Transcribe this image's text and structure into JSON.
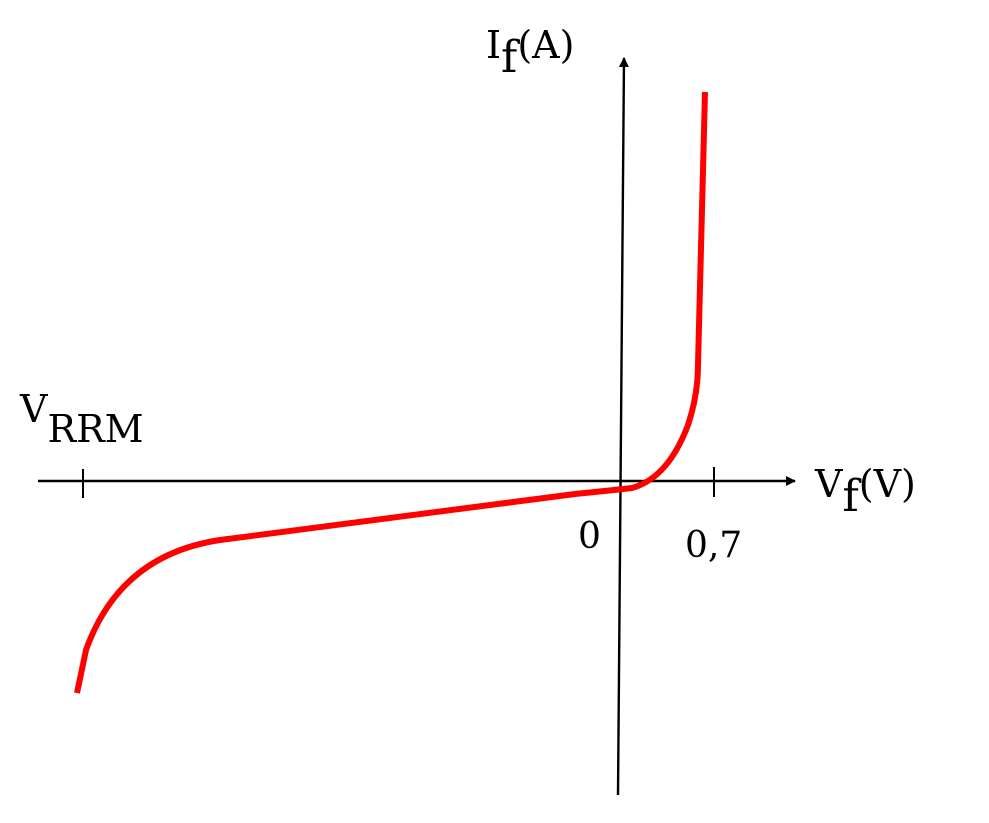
{
  "chart_data": {
    "type": "line",
    "title": "",
    "xlabel": {
      "main": "V",
      "sub": "f",
      "unit": "(V)"
    },
    "ylabel": {
      "main": "I",
      "sub": "f",
      "unit": "(A)"
    },
    "origin_label": "0",
    "x_ticks": [
      {
        "value": 0.7,
        "label": "0,7"
      }
    ],
    "annotations": [
      {
        "main": "V",
        "sub": "RRM"
      }
    ],
    "grid": false,
    "legend": "none",
    "colors": {
      "curve": "#ff0000",
      "axes": "#000000"
    }
  }
}
